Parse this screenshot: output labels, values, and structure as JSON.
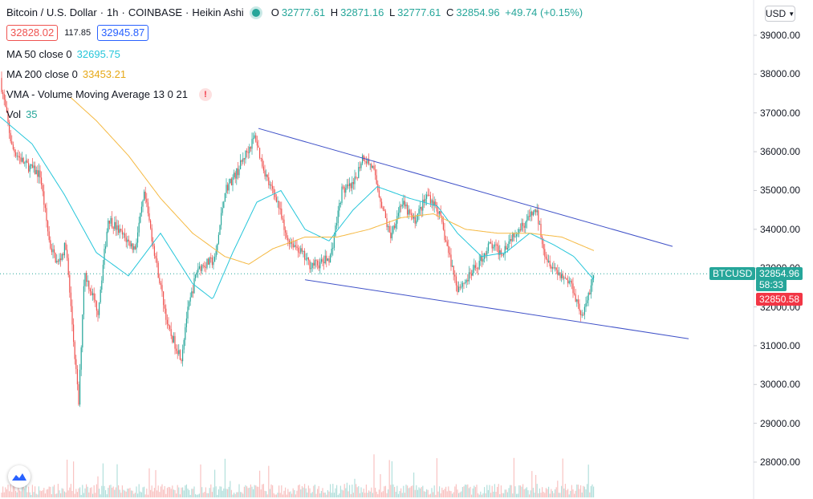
{
  "header": {
    "symbol": "Bitcoin / U.S. Dollar",
    "interval": "1h",
    "exchange": "COINBASE",
    "chart_style": "Heikin Ashi",
    "ohlc": {
      "o_label": "O",
      "o": "32777.61",
      "h_label": "H",
      "h": "32871.16",
      "l_label": "L",
      "l": "32777.61",
      "c_label": "C",
      "c": "32854.96",
      "change": "+49.74 (+0.15%)"
    },
    "sell_price": "32828.02",
    "spread": "117.85",
    "buy_price": "32945.87"
  },
  "indicators": {
    "ma50": {
      "label": "MA 50 close 0",
      "value": "32695.75",
      "color": "#26c6da"
    },
    "ma200": {
      "label": "MA 200 close 0",
      "value": "33453.21",
      "color": "#f5b942"
    },
    "vma": {
      "label": "VMA - Volume Moving Average 13 0 21"
    },
    "vol": {
      "label": "Vol",
      "value": "35"
    }
  },
  "currency_selector": "USD",
  "price_tag": {
    "symbol": "BTCUSD",
    "price": "32854.96",
    "countdown": "58:33"
  },
  "other_tag": {
    "price": "32850.58"
  },
  "colors": {
    "up": "#26a69a",
    "down": "#ef5350",
    "trendline": "#3f51c8",
    "axis_text": "#131722"
  },
  "icons": {
    "warning": "warning-icon",
    "logo": "tradingview-logo-icon"
  },
  "chart_data": {
    "type": "candlestick",
    "title": "Bitcoin / U.S. Dollar · 1h · COINBASE",
    "y_axis": {
      "min": 27200,
      "max": 39500,
      "ticks": [
        39000,
        38000,
        37000,
        36000,
        35000,
        34000,
        33000,
        32000,
        31000,
        30000,
        29000,
        28000
      ],
      "tick_labels": [
        "39000.00",
        "38000.00",
        "37000.00",
        "36000.00",
        "35000.00",
        "34000.00",
        "33000.00",
        "32000.00",
        "31000.00",
        "30000.00",
        "29000.00",
        "28000.00"
      ]
    },
    "price_path": [
      [
        0,
        37900
      ],
      [
        6,
        37200
      ],
      [
        15,
        36100
      ],
      [
        30,
        35700
      ],
      [
        50,
        35400
      ],
      [
        62,
        33600
      ],
      [
        72,
        33100
      ],
      [
        82,
        33600
      ],
      [
        98,
        29500
      ],
      [
        105,
        32900
      ],
      [
        122,
        31900
      ],
      [
        135,
        34300
      ],
      [
        150,
        33900
      ],
      [
        168,
        33500
      ],
      [
        180,
        34900
      ],
      [
        196,
        33000
      ],
      [
        210,
        31400
      ],
      [
        226,
        30700
      ],
      [
        232,
        31700
      ],
      [
        246,
        33000
      ],
      [
        255,
        33100
      ],
      [
        268,
        33200
      ],
      [
        280,
        35000
      ],
      [
        296,
        35500
      ],
      [
        305,
        35900
      ],
      [
        318,
        36400
      ],
      [
        325,
        35800
      ],
      [
        336,
        35100
      ],
      [
        345,
        34800
      ],
      [
        356,
        33800
      ],
      [
        372,
        33500
      ],
      [
        385,
        33100
      ],
      [
        398,
        33100
      ],
      [
        412,
        33300
      ],
      [
        426,
        35000
      ],
      [
        440,
        35100
      ],
      [
        452,
        35900
      ],
      [
        464,
        35600
      ],
      [
        475,
        34700
      ],
      [
        486,
        33800
      ],
      [
        500,
        34700
      ],
      [
        516,
        34200
      ],
      [
        533,
        34900
      ],
      [
        546,
        34500
      ],
      [
        560,
        33300
      ],
      [
        570,
        32500
      ],
      [
        582,
        32700
      ],
      [
        596,
        33100
      ],
      [
        610,
        33600
      ],
      [
        625,
        33400
      ],
      [
        640,
        33900
      ],
      [
        655,
        34200
      ],
      [
        668,
        34500
      ],
      [
        680,
        33300
      ],
      [
        695,
        32900
      ],
      [
        712,
        32600
      ],
      [
        726,
        31700
      ],
      [
        733,
        32300
      ],
      [
        740,
        32850
      ]
    ],
    "ma50_path": [
      [
        0,
        36900
      ],
      [
        40,
        36200
      ],
      [
        80,
        34900
      ],
      [
        120,
        33400
      ],
      [
        160,
        32800
      ],
      [
        200,
        33900
      ],
      [
        240,
        32600
      ],
      [
        265,
        32200
      ],
      [
        290,
        33400
      ],
      [
        320,
        34700
      ],
      [
        350,
        35000
      ],
      [
        380,
        34000
      ],
      [
        410,
        33700
      ],
      [
        440,
        34500
      ],
      [
        470,
        35100
      ],
      [
        510,
        34800
      ],
      [
        545,
        34600
      ],
      [
        570,
        33900
      ],
      [
        600,
        33300
      ],
      [
        630,
        33400
      ],
      [
        660,
        33900
      ],
      [
        690,
        33600
      ],
      [
        715,
        33300
      ],
      [
        740,
        32700
      ]
    ],
    "ma200_path": [
      [
        88,
        37400
      ],
      [
        120,
        36800
      ],
      [
        160,
        35900
      ],
      [
        200,
        34800
      ],
      [
        240,
        33900
      ],
      [
        280,
        33300
      ],
      [
        310,
        33100
      ],
      [
        340,
        33500
      ],
      [
        380,
        33800
      ],
      [
        420,
        33800
      ],
      [
        460,
        34000
      ],
      [
        500,
        34300
      ],
      [
        540,
        34400
      ],
      [
        580,
        34000
      ],
      [
        620,
        33900
      ],
      [
        660,
        33900
      ],
      [
        700,
        33800
      ],
      [
        740,
        33450
      ]
    ],
    "trendlines": [
      {
        "name": "upper",
        "x1": 322,
        "y1": 36600,
        "x2": 838,
        "y2": 33560
      },
      {
        "name": "lower",
        "x1": 380,
        "y1": 32700,
        "x2": 858,
        "y2": 31180
      }
    ],
    "last_price": 32854.96,
    "volume": {
      "max_value": 1,
      "note_units": "relative"
    },
    "grid": false,
    "legend_position": "top-left"
  }
}
